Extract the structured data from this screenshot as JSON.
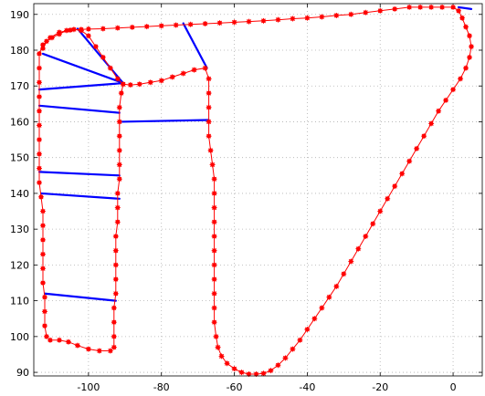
{
  "chart_data": {
    "type": "line",
    "title": "",
    "xlabel": "",
    "ylabel": "",
    "xlim": [
      -115,
      8
    ],
    "ylim": [
      89,
      193
    ],
    "xticks": [
      -100,
      -80,
      -60,
      -40,
      -20,
      0
    ],
    "yticks": [
      90,
      100,
      110,
      120,
      130,
      140,
      150,
      160,
      170,
      180,
      190
    ],
    "xtick_labels": [
      "-100",
      "-80",
      "-60",
      "-40",
      "-20",
      "0"
    ],
    "ytick_labels": [
      "90",
      "100",
      "110",
      "120",
      "130",
      "140",
      "150",
      "160",
      "170",
      "180",
      "190"
    ],
    "grid": true,
    "series": [
      {
        "style": "red-line-with-star-markers",
        "color": "#ff0000",
        "points": [
          [
            -112.5,
            180.5
          ],
          [
            -111.5,
            182.5
          ],
          [
            -110,
            183.5
          ],
          [
            -108,
            184.5
          ],
          [
            -106,
            185.5
          ],
          [
            -104,
            185.8
          ],
          [
            -102,
            185.5
          ],
          [
            -100,
            184
          ],
          [
            -98,
            181
          ],
          [
            -96,
            178
          ],
          [
            -94,
            175
          ],
          [
            -92,
            172
          ],
          [
            -90.5,
            170.5
          ],
          [
            -88.5,
            170.3
          ],
          [
            -86,
            170.5
          ],
          [
            -83,
            171
          ],
          [
            -80,
            171.5
          ],
          [
            -77,
            172.5
          ],
          [
            -74,
            173.5
          ],
          [
            -71,
            174.5
          ],
          [
            -68,
            175
          ],
          [
            -67,
            172
          ],
          [
            -67,
            168
          ],
          [
            -67,
            164
          ],
          [
            -67,
            160
          ],
          [
            -67,
            156
          ],
          [
            -66.5,
            152
          ],
          [
            -66,
            148
          ],
          [
            -65.5,
            144
          ],
          [
            -65.5,
            140
          ],
          [
            -65.5,
            136
          ],
          [
            -65.5,
            132
          ],
          [
            -65.5,
            128
          ],
          [
            -65.5,
            124
          ],
          [
            -65.5,
            120
          ],
          [
            -65.5,
            116
          ],
          [
            -65.5,
            112
          ],
          [
            -65.5,
            108
          ],
          [
            -65.5,
            104
          ],
          [
            -65,
            100
          ],
          [
            -64.5,
            97
          ],
          [
            -63.5,
            94.5
          ],
          [
            -62,
            92.5
          ],
          [
            -60,
            91
          ],
          [
            -58,
            90
          ],
          [
            -56,
            89.5
          ],
          [
            -54,
            89.5
          ],
          [
            -52,
            89.7
          ],
          [
            -50,
            90.5
          ],
          [
            -48,
            92
          ],
          [
            -46,
            94
          ],
          [
            -44,
            96.5
          ],
          [
            -42,
            99
          ],
          [
            -40,
            102
          ],
          [
            -38,
            105
          ],
          [
            -36,
            108
          ],
          [
            -34,
            111
          ],
          [
            -32,
            114
          ],
          [
            -30,
            117.5
          ],
          [
            -28,
            121
          ],
          [
            -26,
            124.5
          ],
          [
            -24,
            128
          ],
          [
            -22,
            131.5
          ],
          [
            -20,
            135
          ],
          [
            -18,
            138.5
          ],
          [
            -16,
            142
          ],
          [
            -14,
            145.5
          ],
          [
            -12,
            149
          ],
          [
            -10,
            152.5
          ],
          [
            -8,
            156
          ],
          [
            -6,
            159.5
          ],
          [
            -4,
            163
          ],
          [
            -2,
            166
          ],
          [
            0,
            169
          ],
          [
            2,
            172
          ],
          [
            3.5,
            175
          ],
          [
            4.5,
            178
          ],
          [
            5,
            181
          ],
          [
            4.5,
            184
          ],
          [
            3.5,
            186.5
          ],
          [
            2.5,
            189
          ],
          [
            1.5,
            191
          ],
          [
            0,
            192
          ],
          [
            -3,
            192
          ],
          [
            -6,
            192
          ],
          [
            -9,
            192
          ],
          [
            -12,
            192
          ],
          [
            -16,
            191.5
          ],
          [
            -20,
            191
          ],
          [
            -24,
            190.5
          ],
          [
            -28,
            190
          ],
          [
            -32,
            189.7
          ],
          [
            -36,
            189.3
          ],
          [
            -40,
            189
          ],
          [
            -44,
            188.8
          ],
          [
            -48,
            188.5
          ],
          [
            -52,
            188.2
          ],
          [
            -56,
            188
          ],
          [
            -60,
            187.8
          ],
          [
            -64,
            187.6
          ],
          [
            -68,
            187.4
          ],
          [
            -72,
            187.2
          ],
          [
            -76,
            187
          ],
          [
            -80,
            186.8
          ],
          [
            -84,
            186.6
          ],
          [
            -88,
            186.4
          ],
          [
            -92,
            186.2
          ],
          [
            -96,
            186
          ],
          [
            -100,
            185.9
          ],
          [
            -102,
            185.8
          ],
          [
            -105,
            185.6
          ],
          [
            -108,
            185
          ],
          [
            -110.5,
            183.5
          ],
          [
            -112.5,
            181.5
          ],
          [
            -113.5,
            179
          ],
          [
            -113.5,
            175
          ],
          [
            -113.5,
            171
          ],
          [
            -113.5,
            167
          ],
          [
            -113.5,
            163
          ],
          [
            -113.5,
            159
          ],
          [
            -113.5,
            155
          ],
          [
            -113.5,
            151
          ],
          [
            -113.5,
            147
          ],
          [
            -113.5,
            143
          ],
          [
            -113,
            139
          ],
          [
            -112.5,
            135
          ],
          [
            -112.5,
            131
          ],
          [
            -112.5,
            127
          ],
          [
            -112.5,
            123
          ],
          [
            -112.5,
            119
          ],
          [
            -112.5,
            115
          ],
          [
            -112,
            111
          ],
          [
            -112,
            107
          ],
          [
            -112,
            103
          ],
          [
            -111.5,
            100
          ],
          [
            -110.5,
            99
          ],
          [
            -108,
            99
          ],
          [
            -105.5,
            98.5
          ],
          [
            -103,
            97.5
          ],
          [
            -100,
            96.5
          ],
          [
            -97,
            96
          ],
          [
            -94,
            96
          ],
          [
            -93,
            97
          ],
          [
            -93,
            100
          ],
          [
            -93,
            104
          ],
          [
            -93,
            108
          ],
          [
            -92.5,
            112
          ],
          [
            -92.5,
            116
          ],
          [
            -92.5,
            120
          ],
          [
            -92.5,
            124
          ],
          [
            -92.5,
            128
          ],
          [
            -92,
            132
          ],
          [
            -92,
            136
          ],
          [
            -92,
            140
          ],
          [
            -91.5,
            144
          ],
          [
            -91.5,
            148
          ],
          [
            -91.5,
            152
          ],
          [
            -91.5,
            156
          ],
          [
            -91.5,
            160
          ],
          [
            -91.5,
            164
          ],
          [
            -91,
            168
          ],
          [
            -90.5,
            170.5
          ]
        ]
      }
    ],
    "segments": {
      "color": "#0000ff",
      "lines": [
        [
          [
            -103,
            186
          ],
          [
            -90.5,
            170.8
          ]
        ],
        [
          [
            -112.5,
            179
          ],
          [
            -90.5,
            170.8
          ]
        ],
        [
          [
            -113.5,
            169
          ],
          [
            -90.5,
            170.8
          ]
        ],
        [
          [
            -74,
            187.5
          ],
          [
            -67.5,
            175
          ]
        ],
        [
          [
            -113.5,
            164.5
          ],
          [
            -91.5,
            162.5
          ]
        ],
        [
          [
            -91,
            160
          ],
          [
            -67,
            160.5
          ]
        ],
        [
          [
            -113.5,
            146
          ],
          [
            -91.5,
            145
          ]
        ],
        [
          [
            -113,
            140
          ],
          [
            -91.5,
            138.5
          ]
        ],
        [
          [
            -112,
            112
          ],
          [
            -92.5,
            110
          ]
        ],
        [
          [
            1.5,
            192
          ],
          [
            5,
            191.5
          ]
        ]
      ]
    }
  }
}
